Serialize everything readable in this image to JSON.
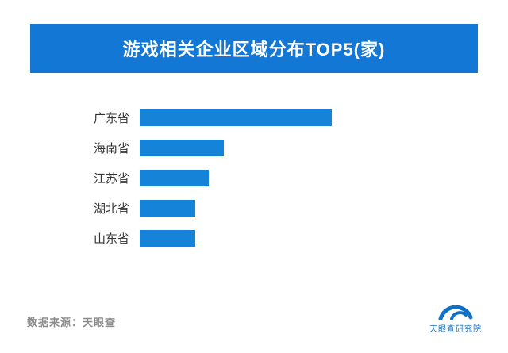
{
  "banner": {
    "title": "游戏相关企业区域分布TOP5(家)",
    "bg_color": "#1377d5",
    "text_color": "#ffffff"
  },
  "chart_data": {
    "type": "bar",
    "orientation": "horizontal",
    "title": "游戏相关企业区域分布TOP5(家)",
    "categories": [
      "广东省",
      "海南省",
      "江苏省",
      "湖北省",
      "山东省"
    ],
    "values": [
      100,
      44,
      36,
      29,
      29
    ],
    "value_note": "relative bar lengths estimated from pixels; no numeric labels shown",
    "bar_color": "#1583d8",
    "xlabel": "",
    "ylabel": "",
    "xlim": [
      0,
      100
    ],
    "grid": false,
    "legend": false
  },
  "footer": {
    "source": "数据来源：天眼查",
    "logo_text": "天眼查研究院",
    "logo_color": "#1270c7"
  }
}
